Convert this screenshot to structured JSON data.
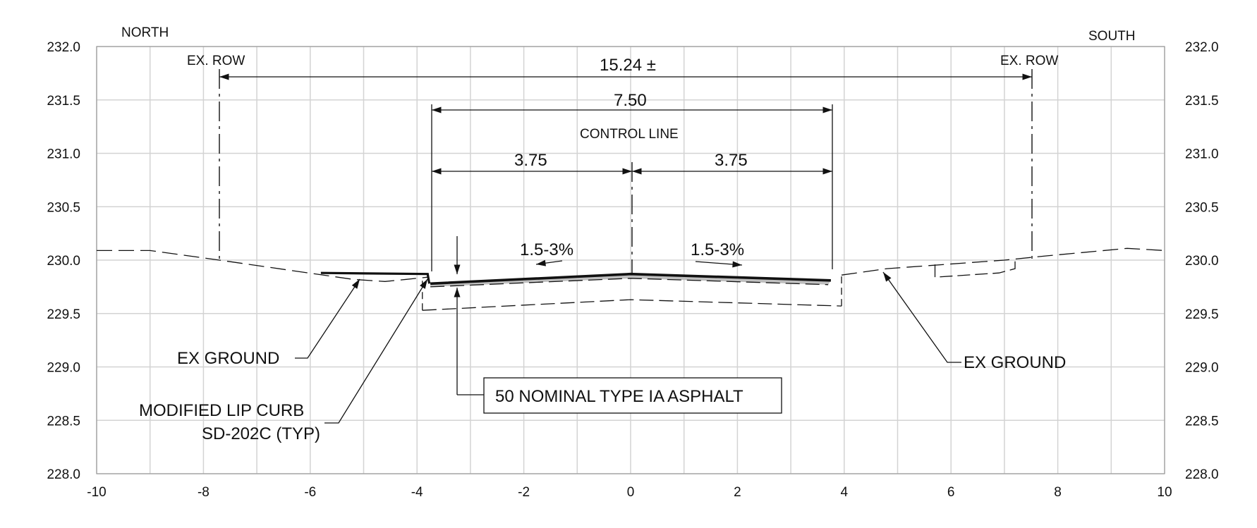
{
  "direction": {
    "left": "NORTH",
    "right": "SOUTH"
  },
  "axes": {
    "x_min": -10,
    "x_max": 10,
    "x_step": 1,
    "x_ticks": [
      "-10",
      "-8",
      "-6",
      "-4",
      "-2",
      "0",
      "2",
      "4",
      "6",
      "8",
      "10"
    ],
    "y_min": 228.0,
    "y_max": 232.0,
    "y_step": 0.5,
    "y_ticks": [
      "228.0",
      "228.5",
      "229.0",
      "229.5",
      "230.0",
      "230.5",
      "231.0",
      "231.5",
      "232.0"
    ]
  },
  "row_labels": {
    "left": "EX. ROW",
    "right": "EX. ROW"
  },
  "dimensions": {
    "overall": "15.24 ±",
    "travelway": "7.50",
    "control_line": "CONTROL LINE",
    "left_lane": "3.75",
    "right_lane": "3.75"
  },
  "slopes": {
    "left": "1.5-3%",
    "right": "1.5-3%"
  },
  "callouts": {
    "ex_ground_left": "EX GROUND",
    "ex_ground_right": "EX GROUND",
    "curb_line1": "MODIFIED LIP CURB",
    "curb_line2": "SD-202C (TYP)",
    "asphalt": "50 NOMINAL TYPE IA ASPHALT"
  },
  "geometry_data": {
    "ex_ground": [
      [
        -10,
        230.09
      ],
      [
        -9,
        230.09
      ],
      [
        -7.7,
        230.0
      ],
      [
        -5.2,
        229.82
      ],
      [
        -4.6,
        229.8
      ],
      [
        -4.2,
        229.82
      ],
      [
        -3.8,
        229.84
      ]
    ],
    "ex_ground_right": [
      [
        3.95,
        229.86
      ],
      [
        4.8,
        229.92
      ],
      [
        7.0,
        230.0
      ],
      [
        7.8,
        230.04
      ],
      [
        9.3,
        230.11
      ],
      [
        10,
        230.09
      ]
    ],
    "finished_road": [
      [
        -3.75,
        229.78
      ],
      [
        0,
        229.87
      ],
      [
        3.75,
        229.81
      ]
    ],
    "road_subgrade": [
      [
        -3.75,
        229.75
      ],
      [
        0,
        229.83
      ],
      [
        3.7,
        229.77
      ]
    ],
    "subbase": [
      [
        -3.9,
        229.53
      ],
      [
        0,
        229.63
      ],
      [
        3.95,
        229.57
      ]
    ],
    "curb": [
      [
        -5.8,
        229.88
      ],
      [
        -3.8,
        229.87
      ],
      [
        -3.77,
        229.78
      ]
    ]
  },
  "colors": {
    "line": "#111111",
    "grid": "#d3d3d3",
    "pavement_fill": "#bfbfbf"
  }
}
